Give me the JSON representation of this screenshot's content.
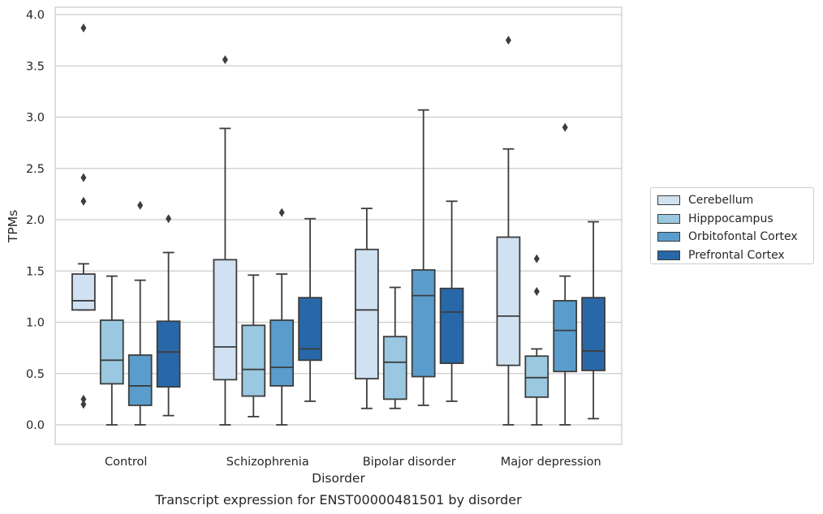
{
  "chart_data": {
    "type": "boxplot",
    "xlabel": "Disorder",
    "ylabel": "TPMs",
    "caption": "Transcript expression for ENST00000481501 by disorder",
    "ylim": [
      -0.18,
      4.07
    ],
    "yticks": [
      0.0,
      0.5,
      1.0,
      1.5,
      2.0,
      2.5,
      3.0,
      3.5,
      4.0
    ],
    "ytick_labels": [
      "0.0",
      "0.5",
      "1.0",
      "1.5",
      "2.0",
      "2.5",
      "3.0",
      "3.5",
      "4.0"
    ],
    "grid": "horizontal",
    "legend_position": "right",
    "categories": [
      "Control",
      "Schizophrenia",
      "Bipolar disorder",
      "Major depression"
    ],
    "series": [
      {
        "name": "Cerebellum",
        "color": "#d0e1f2",
        "boxes": [
          {
            "whisker_low": 1.12,
            "q1": 1.12,
            "median": 1.21,
            "q3": 1.47,
            "whisker_high": 1.57,
            "outliers": [
              3.87,
              2.41,
              2.18,
              0.25,
              0.2
            ]
          },
          {
            "whisker_low": 0.0,
            "q1": 0.44,
            "median": 0.76,
            "q3": 1.61,
            "whisker_high": 2.89,
            "outliers": [
              3.56
            ]
          },
          {
            "whisker_low": 0.16,
            "q1": 0.45,
            "median": 1.12,
            "q3": 1.71,
            "whisker_high": 2.11,
            "outliers": []
          },
          {
            "whisker_low": 0.0,
            "q1": 0.58,
            "median": 1.06,
            "q3": 1.83,
            "whisker_high": 2.69,
            "outliers": [
              3.75
            ]
          }
        ]
      },
      {
        "name": "Hipppocampus",
        "color": "#9ac8e0",
        "boxes": [
          {
            "whisker_low": 0.0,
            "q1": 0.4,
            "median": 0.63,
            "q3": 1.02,
            "whisker_high": 1.45,
            "outliers": []
          },
          {
            "whisker_low": 0.08,
            "q1": 0.28,
            "median": 0.54,
            "q3": 0.97,
            "whisker_high": 1.46,
            "outliers": []
          },
          {
            "whisker_low": 0.16,
            "q1": 0.25,
            "median": 0.61,
            "q3": 0.86,
            "whisker_high": 1.34,
            "outliers": []
          },
          {
            "whisker_low": 0.0,
            "q1": 0.27,
            "median": 0.46,
            "q3": 0.67,
            "whisker_high": 0.74,
            "outliers": [
              1.62,
              1.3
            ]
          }
        ]
      },
      {
        "name": "Orbitofontal Cortex",
        "color": "#5a9dcd",
        "boxes": [
          {
            "whisker_low": 0.0,
            "q1": 0.19,
            "median": 0.38,
            "q3": 0.68,
            "whisker_high": 1.41,
            "outliers": [
              2.14
            ]
          },
          {
            "whisker_low": 0.0,
            "q1": 0.38,
            "median": 0.56,
            "q3": 1.02,
            "whisker_high": 1.47,
            "outliers": [
              2.07
            ]
          },
          {
            "whisker_low": 0.19,
            "q1": 0.47,
            "median": 1.26,
            "q3": 1.51,
            "whisker_high": 3.07,
            "outliers": []
          },
          {
            "whisker_low": 0.0,
            "q1": 0.52,
            "median": 0.92,
            "q3": 1.21,
            "whisker_high": 1.45,
            "outliers": [
              2.9
            ]
          }
        ]
      },
      {
        "name": "Prefrontal Cortex",
        "color": "#2868a8",
        "boxes": [
          {
            "whisker_low": 0.09,
            "q1": 0.37,
            "median": 0.71,
            "q3": 1.01,
            "whisker_high": 1.68,
            "outliers": [
              2.01
            ]
          },
          {
            "whisker_low": 0.23,
            "q1": 0.63,
            "median": 0.74,
            "q3": 1.24,
            "whisker_high": 2.01,
            "outliers": []
          },
          {
            "whisker_low": 0.23,
            "q1": 0.6,
            "median": 1.1,
            "q3": 1.33,
            "whisker_high": 2.18,
            "outliers": []
          },
          {
            "whisker_low": 0.06,
            "q1": 0.53,
            "median": 0.72,
            "q3": 1.24,
            "whisker_high": 1.98,
            "outliers": []
          }
        ]
      }
    ]
  }
}
